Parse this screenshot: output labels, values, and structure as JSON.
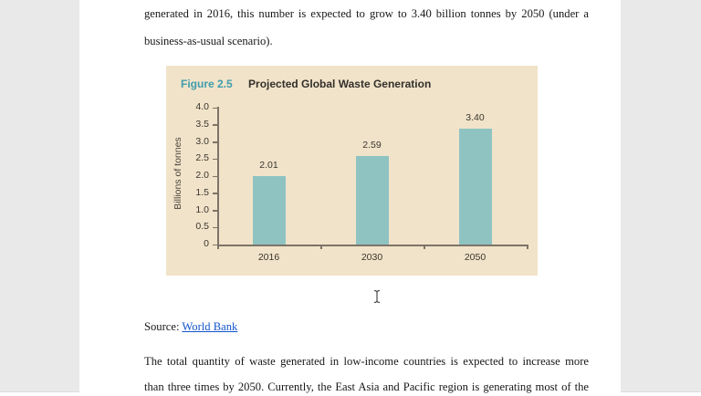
{
  "document": {
    "paragraph_top": {
      "line1": "generated in 2016, this number is expected to grow to 3.40 billion tonnes by 2050 (under a",
      "line2": "business-as-usual scenario)."
    },
    "source": {
      "label": "Source: ",
      "link_text": "World Bank"
    },
    "paragraph_bottom": {
      "line1": "The total quantity of waste generated in low-income countries is expected to increase more",
      "line2": "than three times by 2050. Currently, the East Asia and Pacific region is generating most of the"
    }
  },
  "figure": {
    "label": "Figure 2.5",
    "title": "Projected Global Waste Generation",
    "colors": {
      "panel_background": "#f1e3c9",
      "bar": "#8ec3c2",
      "figure_label": "#3f9dac",
      "axis": "#7d7467",
      "link": "#1155cc",
      "gutter_gray": "#e9e9e9"
    }
  },
  "chart_data": {
    "type": "bar",
    "categories": [
      "2016",
      "2030",
      "2050"
    ],
    "values": [
      2.01,
      2.59,
      3.4
    ],
    "value_labels": [
      "2.01",
      "2.59",
      "3.40"
    ],
    "title": "Projected Global Waste Generation",
    "xlabel": "",
    "ylabel": "Billions of tonnes",
    "ylim": [
      0,
      4.0
    ],
    "ytick_step": 0.5,
    "ytick_labels": [
      "0",
      "0.5",
      "1.0",
      "1.5",
      "2.0",
      "2.5",
      "3.0",
      "3.5",
      "4.0"
    ],
    "grid": false,
    "legend": false
  },
  "cursor": {
    "type": "text-ibeam"
  }
}
